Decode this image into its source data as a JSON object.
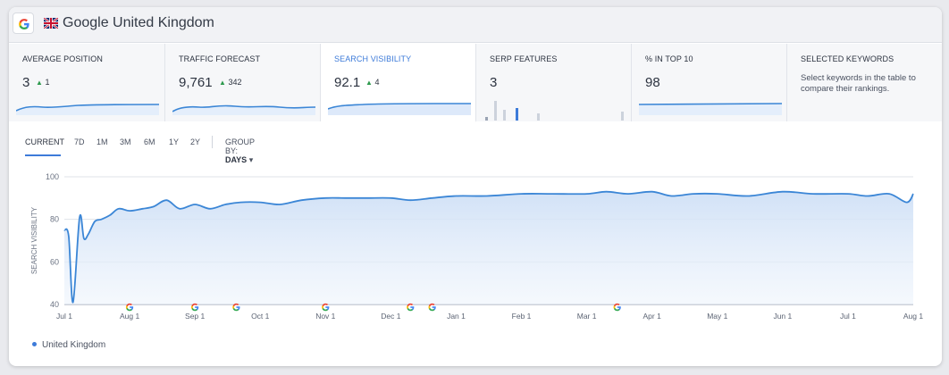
{
  "header": {
    "title": "Google United Kingdom",
    "engine_icon": "google-g-icon",
    "flag_icon": "uk-flag-icon"
  },
  "metrics": {
    "average_position": {
      "label": "AVERAGE POSITION",
      "value": "3",
      "delta": "1"
    },
    "traffic_forecast": {
      "label": "TRAFFIC FORECAST",
      "value": "9,761",
      "delta": "342"
    },
    "search_visibility": {
      "label": "SEARCH VISIBILITY",
      "value": "92.1",
      "delta": "4"
    },
    "serp_features": {
      "label": "SERP FEATURES",
      "value": "3"
    },
    "in_top_10": {
      "label": "% IN TOP 10",
      "value": "98"
    },
    "selected_keywords": {
      "label": "SELECTED KEYWORDS",
      "description": "Select keywords in the table to compare their rankings."
    }
  },
  "tabs": {
    "items": [
      "CURRENT",
      "7D",
      "1M",
      "3M",
      "6M",
      "1Y",
      "2Y"
    ],
    "active": "CURRENT",
    "group_by_label": "GROUP BY:",
    "group_by_value": "DAYS"
  },
  "colors": {
    "accent": "#3d7bd9",
    "positive": "#2e9a4e",
    "line": "#3b86d6"
  },
  "chart_data": {
    "type": "area",
    "ylabel": "SEARCH VISIBILITY",
    "ylim": [
      40,
      100
    ],
    "yticks": [
      40,
      60,
      80,
      100
    ],
    "grid": true,
    "x_ticks": [
      "Jul 1",
      "Aug 1",
      "Sep 1",
      "Oct 1",
      "Nov 1",
      "Dec 1",
      "Jan 1",
      "Feb 1",
      "Mar 1",
      "Apr 1",
      "May 1",
      "Jun 1",
      "Jul 1",
      "Aug 1"
    ],
    "series": [
      {
        "name": "United Kingdom",
        "x": [
          "Jul 1",
          "Jul 3",
          "Jul 5",
          "Jul 8",
          "Jul 10",
          "Jul 12",
          "Jul 15",
          "Jul 18",
          "Jul 22",
          "Jul 26",
          "Aug 1",
          "Aug 7",
          "Aug 12",
          "Aug 18",
          "Aug 24",
          "Sep 1",
          "Sep 8",
          "Sep 15",
          "Sep 22",
          "Oct 1",
          "Oct 10",
          "Oct 20",
          "Nov 1",
          "Nov 10",
          "Nov 20",
          "Dec 1",
          "Dec 10",
          "Dec 20",
          "Jan 1",
          "Jan 15",
          "Feb 1",
          "Feb 15",
          "Mar 1",
          "Mar 10",
          "Mar 20",
          "Apr 1",
          "Apr 10",
          "Apr 20",
          "May 1",
          "May 15",
          "Jun 1",
          "Jun 15",
          "Jul 1",
          "Jul 10",
          "Jul 20",
          "Jul 28",
          "Aug 1"
        ],
        "values": [
          75,
          72,
          41,
          81,
          71,
          73,
          79,
          80,
          82,
          85,
          84,
          85,
          86,
          89,
          85,
          87,
          85,
          87,
          88,
          88,
          87,
          89,
          90,
          90,
          90,
          90,
          89,
          90,
          91,
          91,
          92,
          92,
          92,
          93,
          92,
          93,
          91,
          92,
          92,
          91,
          93,
          92,
          92,
          91,
          92,
          88,
          92
        ]
      }
    ],
    "google_update_markers": [
      "Aug 1",
      "Sep 1",
      "Sep 20",
      "Nov 1",
      "Dec 10",
      "Dec 20",
      "Mar 15"
    ]
  },
  "legend": {
    "label": "United Kingdom"
  }
}
